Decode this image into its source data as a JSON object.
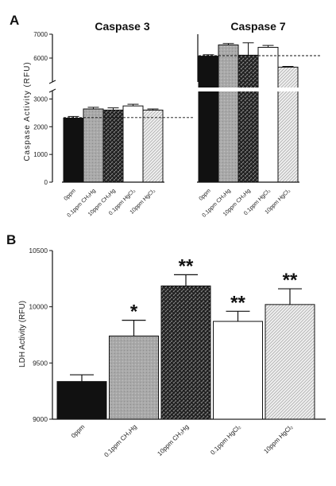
{
  "panels": {
    "a_label": "A",
    "b_label": "B"
  },
  "chart_data": [
    {
      "type": "bar",
      "title": "Caspase 3",
      "ylabel": "Caspase Activity (RFU)",
      "categories": [
        "0ppm",
        "0.1ppm CH₃Hg",
        "10ppm CH₃Hg",
        "0.1ppm HgCl₂",
        "10ppm HgCl₂"
      ],
      "values": [
        2310,
        2640,
        2600,
        2750,
        2600
      ],
      "errors": [
        60,
        60,
        80,
        60,
        40
      ],
      "baseline": 2330,
      "ylim": [
        0,
        7000
      ],
      "broken_axis": [
        3300,
        5000
      ],
      "yticks": [
        0,
        1000,
        2000,
        3000,
        6000,
        7000
      ],
      "yticklabels": [
        "0",
        "1000",
        "2000",
        "3000",
        "6000",
        "7000"
      ],
      "fill_styles": [
        "solid-black",
        "gray-speckled",
        "dark-crosshatch",
        "white",
        "light-diagonal"
      ]
    },
    {
      "type": "bar",
      "title": "Caspase 7",
      "categories": [
        "0ppm",
        "0.1ppm CH₃Hg",
        "10ppm CH₃Hg",
        "0.1ppm HgCl₂",
        "10ppm HgCl₂"
      ],
      "values": [
        6080,
        6550,
        6120,
        6450,
        5620
      ],
      "errors": [
        60,
        60,
        520,
        80,
        30
      ],
      "baseline": 6100,
      "fill_styles": [
        "solid-black",
        "gray-speckled",
        "dark-crosshatch",
        "white",
        "light-diagonal"
      ]
    },
    {
      "type": "bar",
      "ylabel": "LDH Activity (RFU)",
      "categories": [
        "0ppm",
        "0.1ppm CH₃Hg",
        "10ppm CH₃Hg",
        "0.1ppm HgCl₂",
        "10ppm HgCl₂"
      ],
      "values": [
        9335,
        9740,
        10185,
        9870,
        10020
      ],
      "errors": [
        60,
        140,
        100,
        90,
        140
      ],
      "significance": [
        "",
        "*",
        "**",
        "**",
        "**"
      ],
      "ylim": [
        9000,
        10500
      ],
      "yticks": [
        9000,
        9500,
        10000,
        10500
      ],
      "yticklabels": [
        "9000",
        "9500",
        "10000",
        "10500"
      ],
      "fill_styles": [
        "solid-black",
        "gray-speckled",
        "dark-crosshatch",
        "white",
        "light-diagonal"
      ]
    }
  ]
}
